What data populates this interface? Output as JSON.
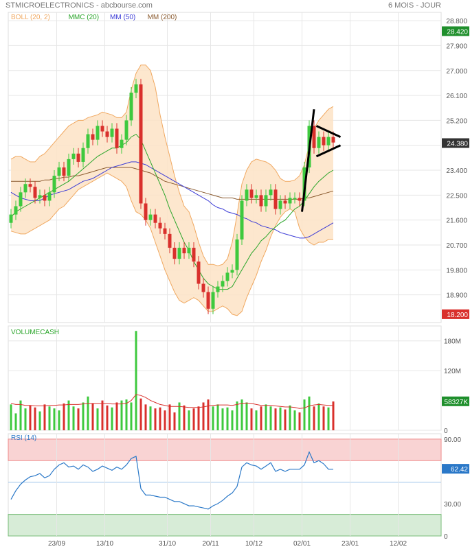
{
  "header": {
    "title": "STMICROELECTRONICS",
    "source": " - abcbourse.com",
    "period": "6 MOIS - JOUR"
  },
  "colors": {
    "up": "#3ec93e",
    "down": "#d9302c",
    "boll_fill": "#fde3c5",
    "boll_line": "#f0a860",
    "mmc20": "#2aa52a",
    "mm50": "#3b3bd6",
    "mm200": "#8a5a2e",
    "rsi_line": "#2a78c8",
    "rsi_over": "#f9d3d3",
    "rsi_under": "#d7ecd7",
    "tag_green": "#1f8f2c",
    "tag_red": "#d9302c",
    "tag_dark": "#333333",
    "tag_blue": "#2a78c8",
    "grid": "#e6e6e6"
  },
  "chart_data": [
    {
      "type": "candlestick",
      "title": "STMICROELECTRONICS",
      "legend": [
        {
          "label": "BOLL (20, 2)",
          "color": "#f0a860"
        },
        {
          "label": "MMC (20)",
          "color": "#2aa52a"
        },
        {
          "label": "MM (50)",
          "color": "#3b3bd6"
        },
        {
          "label": "MM (200)",
          "color": "#8a5a2e"
        }
      ],
      "ylim": [
        17.9,
        29.1
      ],
      "y_ticks": [
        "28.800",
        "27.900",
        "27.000",
        "26.100",
        "25.200",
        "24.300",
        "23.400",
        "22.500",
        "21.600",
        "20.700",
        "19.800",
        "18.900"
      ],
      "x_ticks": [
        "23/09",
        "13/10",
        "31/10",
        "20/11",
        "10/12",
        "02/01",
        "23/01",
        "12/02"
      ],
      "x_tick_index": [
        9.5,
        19.5,
        32.5,
        41.5,
        50.5,
        60.5,
        70.5,
        80.5
      ],
      "tags": [
        {
          "label": "28.420",
          "value": 28.42,
          "color": "#1f8f2c"
        },
        {
          "label": "24.380",
          "value": 24.38,
          "color": "#333333"
        },
        {
          "label": "18.200",
          "value": 18.2,
          "color": "#d9302c"
        }
      ],
      "closes": [
        21.8,
        22.1,
        22.6,
        22.9,
        22.8,
        22.4,
        22.5,
        22.3,
        22.6,
        23.2,
        23.5,
        23.2,
        23.8,
        24.0,
        23.7,
        24.2,
        24.7,
        24.5,
        25.0,
        24.8,
        24.6,
        24.9,
        24.2,
        24.5,
        25.2,
        26.2,
        26.5,
        22.2,
        21.6,
        21.8,
        21.5,
        21.3,
        21.1,
        20.6,
        20.2,
        20.6,
        20.4,
        20.6,
        20.1,
        19.3,
        19.0,
        18.4,
        19.0,
        19.2,
        19.4,
        19.7,
        19.8,
        20.9,
        22.3,
        22.7,
        22.4,
        22.5,
        22.1,
        22.5,
        22.7,
        22.0,
        22.3,
        22.2,
        22.4,
        22.4,
        22.3,
        23.5,
        25.0,
        24.2,
        24.6,
        24.3,
        24.6,
        24.4
      ],
      "boll_upper": [
        23.8,
        23.9,
        23.9,
        23.8,
        23.7,
        23.7,
        23.9,
        24.0,
        24.2,
        24.4,
        24.6,
        24.8,
        25.0,
        25.1,
        25.2,
        25.2,
        25.3,
        25.35,
        25.4,
        25.5,
        25.45,
        25.4,
        25.3,
        25.3,
        25.5,
        26.3,
        26.9,
        27.2,
        27.2,
        27.0,
        26.4,
        25.4,
        24.6,
        23.9,
        23.2,
        22.6,
        22.1,
        21.9,
        21.4,
        20.8,
        20.3,
        20.0,
        20.0,
        19.95,
        20.0,
        20.2,
        20.8,
        21.8,
        22.9,
        23.4,
        23.7,
        23.8,
        23.75,
        23.7,
        23.6,
        23.4,
        23.1,
        23.0,
        23.0,
        23.05,
        23.2,
        23.6,
        24.3,
        24.9,
        25.2,
        25.4,
        25.6,
        25.7
      ],
      "boll_lower": [
        21.2,
        21.15,
        21.1,
        21.1,
        21.2,
        21.3,
        21.4,
        21.5,
        21.6,
        21.8,
        22.0,
        22.1,
        22.3,
        22.5,
        22.7,
        22.8,
        22.9,
        23.0,
        23.1,
        23.2,
        23.3,
        23.2,
        23.1,
        23.0,
        22.8,
        22.3,
        21.9,
        21.8,
        21.6,
        21.3,
        20.8,
        20.3,
        19.8,
        19.4,
        19.0,
        18.7,
        18.6,
        18.7,
        18.8,
        18.7,
        18.5,
        18.3,
        18.3,
        18.4,
        18.5,
        18.4,
        18.2,
        18.15,
        18.3,
        18.8,
        19.2,
        19.6,
        20.1,
        20.5,
        21.0,
        21.4,
        21.7,
        21.9,
        22.0,
        21.9,
        21.3,
        21.0,
        20.8,
        20.7,
        20.8,
        20.8,
        20.9,
        20.9
      ],
      "mmc20": [
        21.7,
        21.9,
        22.0,
        22.1,
        22.2,
        22.3,
        22.4,
        22.5,
        22.6,
        22.7,
        22.8,
        22.9,
        23.0,
        23.15,
        23.3,
        23.45,
        23.6,
        23.75,
        23.9,
        24.0,
        24.1,
        24.2,
        24.2,
        24.3,
        24.4,
        24.6,
        24.7,
        24.5,
        24.1,
        23.7,
        23.3,
        22.9,
        22.5,
        22.0,
        21.6,
        21.2,
        20.8,
        20.5,
        20.1,
        19.8,
        19.5,
        19.3,
        19.2,
        19.1,
        19.1,
        19.1,
        19.2,
        19.5,
        19.8,
        20.1,
        20.4,
        20.6,
        20.85,
        21.0,
        21.2,
        21.35,
        21.5,
        21.6,
        21.8,
        22.0,
        22.1,
        22.3,
        22.55,
        22.8,
        23.0,
        23.15,
        23.3,
        23.4
      ],
      "mm50": [
        22.6,
        22.5,
        22.4,
        22.35,
        22.3,
        22.3,
        22.3,
        22.4,
        22.5,
        22.55,
        22.6,
        22.65,
        22.7,
        22.8,
        22.9,
        23.0,
        23.05,
        23.1,
        23.2,
        23.3,
        23.4,
        23.5,
        23.55,
        23.6,
        23.65,
        23.7,
        23.7,
        23.65,
        23.6,
        23.5,
        23.4,
        23.3,
        23.2,
        23.1,
        23.0,
        22.9,
        22.8,
        22.7,
        22.6,
        22.5,
        22.4,
        22.3,
        22.15,
        22.05,
        22.0,
        21.9,
        21.85,
        21.8,
        21.7,
        21.65,
        21.55,
        21.5,
        21.4,
        21.35,
        21.3,
        21.25,
        21.15,
        21.1,
        21.05,
        21.0,
        20.95,
        20.95,
        21.0,
        21.1,
        21.2,
        21.3,
        21.4,
        21.5
      ],
      "mm200": [
        23.0,
        23.0,
        23.0,
        23.0,
        23.0,
        23.0,
        23.0,
        23.05,
        23.05,
        23.1,
        23.1,
        23.15,
        23.15,
        23.2,
        23.2,
        23.25,
        23.3,
        23.35,
        23.4,
        23.45,
        23.5,
        23.5,
        23.5,
        23.5,
        23.5,
        23.5,
        23.45,
        23.4,
        23.35,
        23.3,
        23.2,
        23.1,
        23.0,
        22.95,
        22.9,
        22.85,
        22.8,
        22.75,
        22.7,
        22.65,
        22.6,
        22.55,
        22.5,
        22.45,
        22.4,
        22.4,
        22.4,
        22.35,
        22.35,
        22.35,
        22.35,
        22.35,
        22.35,
        22.35,
        22.35,
        22.35,
        22.35,
        22.35,
        22.35,
        22.35,
        22.35,
        22.4,
        22.4,
        22.45,
        22.5,
        22.55,
        22.6,
        22.65
      ],
      "pattern_lines": [
        {
          "from": [
            60.5,
            21.9
          ],
          "to": [
            63.0,
            25.6
          ]
        },
        {
          "from": [
            63.5,
            25.0
          ],
          "to": [
            68.5,
            24.6
          ]
        },
        {
          "from": [
            63.5,
            23.9
          ],
          "to": [
            68.5,
            24.3
          ]
        }
      ]
    },
    {
      "type": "bar",
      "title": "VOLUMECASH",
      "ylim": [
        0,
        210
      ],
      "y_ticks": [
        "180M",
        "120M",
        "0"
      ],
      "tags": [
        {
          "label": "58327K",
          "value": 58.3,
          "color": "#1f8f2c"
        }
      ],
      "values": [
        52,
        34,
        60,
        44,
        50,
        46,
        38,
        52,
        48,
        44,
        40,
        54,
        60,
        48,
        44,
        56,
        68,
        54,
        44,
        60,
        50,
        46,
        56,
        60,
        62,
        56,
        200,
        64,
        52,
        48,
        44,
        46,
        40,
        52,
        36,
        56,
        50,
        40,
        44,
        48,
        56,
        62,
        48,
        52,
        44,
        46,
        40,
        58,
        62,
        56,
        44,
        40,
        48,
        52,
        48,
        44,
        46,
        42,
        50,
        40,
        36,
        62,
        68,
        48,
        54,
        48,
        46,
        58
      ],
      "avg": [
        54,
        52,
        52,
        50,
        50,
        49,
        49,
        49,
        50,
        50,
        51,
        51,
        52,
        52,
        52,
        53,
        54,
        54,
        54,
        54,
        54,
        53,
        53,
        53,
        54,
        60,
        72,
        70,
        66,
        60,
        56,
        52,
        50,
        48,
        48,
        48,
        47,
        46,
        46,
        46,
        47,
        49,
        50,
        51,
        51,
        51,
        50,
        52,
        54,
        55,
        54,
        52,
        50,
        50,
        50,
        49,
        48,
        47,
        47,
        46,
        44,
        45,
        49,
        51,
        52,
        51,
        50,
        50
      ]
    },
    {
      "type": "line",
      "title": "RSI (14)",
      "ylim": [
        0,
        95
      ],
      "y_ticks": [
        "90.00",
        "30.00",
        "0"
      ],
      "bands": {
        "over": [
          70,
          90
        ],
        "under": [
          0,
          20
        ],
        "mid": 50
      },
      "tags": [
        {
          "label": "62.42",
          "value": 62.42,
          "color": "#2a78c8"
        }
      ],
      "values": [
        34,
        42,
        48,
        52,
        55,
        56,
        58,
        54,
        56,
        62,
        66,
        68,
        64,
        65,
        62,
        66,
        64,
        60,
        62,
        65,
        63,
        61,
        64,
        62,
        66,
        72,
        74,
        44,
        38,
        38,
        37,
        36,
        36,
        34,
        32,
        32,
        30,
        28,
        28,
        27,
        26,
        25,
        28,
        30,
        33,
        37,
        40,
        46,
        64,
        68,
        66,
        65,
        62,
        65,
        68,
        60,
        62,
        60,
        62,
        62,
        62,
        66,
        78,
        68,
        70,
        67,
        62,
        62
      ]
    }
  ]
}
